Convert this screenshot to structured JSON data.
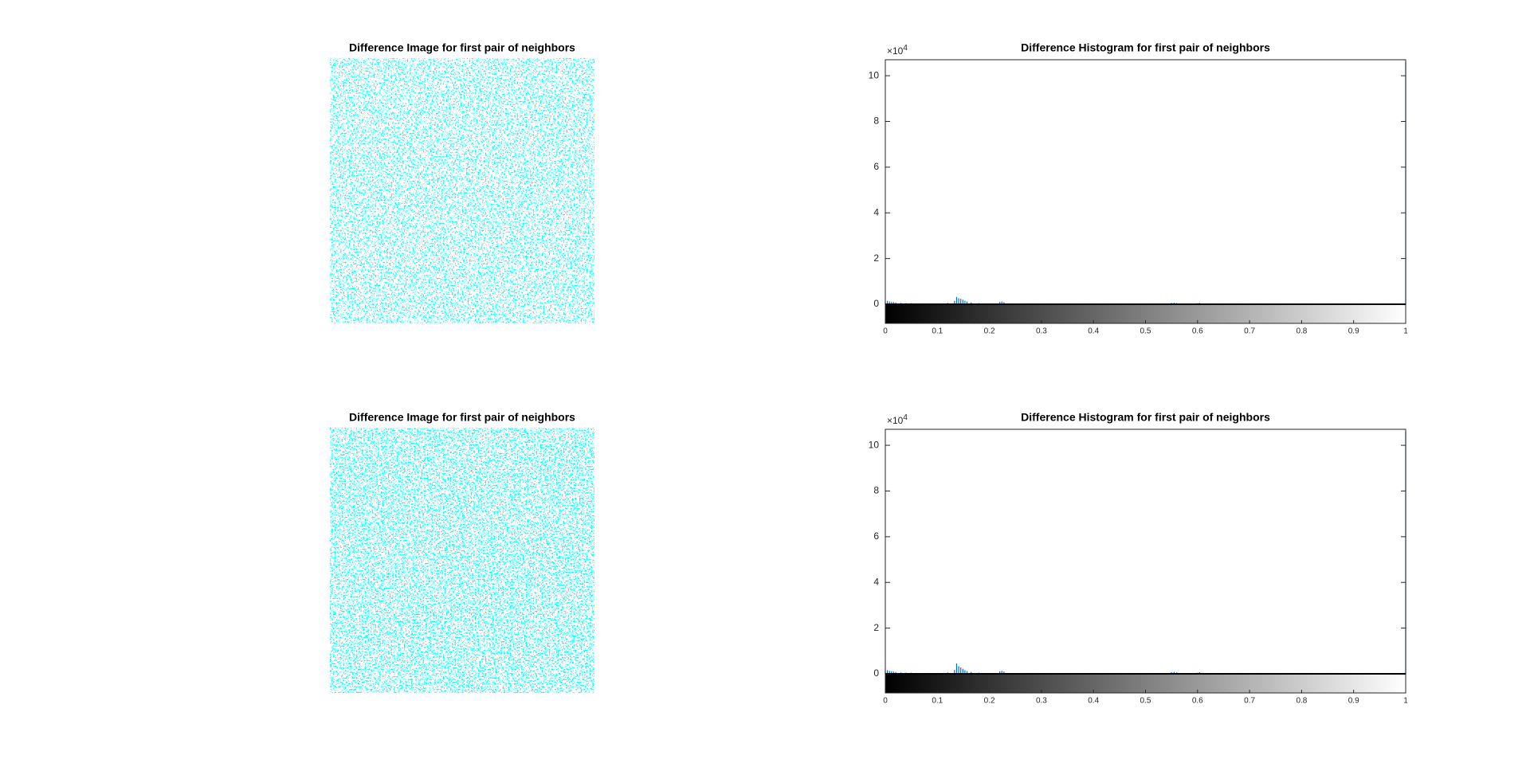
{
  "chart_data": [
    {
      "type": "image",
      "title": "Difference Image for first pair of neighbors"
    },
    {
      "type": "histogram",
      "title": "Difference Histogram for first pair of neighbors",
      "color": "#0072bd",
      "x": [
        0,
        0.004,
        0.008,
        0.012,
        0.016,
        0.02,
        0.03,
        0.04,
        0.05,
        0.06,
        0.08,
        0.1,
        0.12,
        0.133,
        0.137,
        0.141,
        0.145,
        0.149,
        0.153,
        0.157,
        0.165,
        0.18,
        0.22,
        0.224,
        0.228,
        0.3,
        0.4,
        0.5,
        0.55,
        0.555,
        0.56,
        0.6,
        0.604,
        0.7,
        0.8,
        0.9,
        1
      ],
      "values": [
        1200,
        1500,
        1200,
        1000,
        900,
        800,
        600,
        500,
        500,
        400,
        400,
        400,
        600,
        1500,
        3200,
        2600,
        2400,
        2000,
        1500,
        1200,
        800,
        500,
        1000,
        1200,
        900,
        300,
        300,
        300,
        600,
        700,
        500,
        500,
        600,
        300,
        300,
        200,
        106000
      ],
      "xlim": [
        0,
        1
      ],
      "ylim": [
        0,
        107000
      ],
      "xticks": [
        0,
        0.1,
        0.2,
        0.3,
        0.4,
        0.5,
        0.6,
        0.7,
        0.8,
        0.9,
        1
      ],
      "yticks": [
        0,
        {
          "value": 20000,
          "label": "2"
        },
        {
          "value": 40000,
          "label": "4"
        },
        {
          "value": 60000,
          "label": "6"
        },
        {
          "value": 80000,
          "label": "8"
        },
        {
          "value": 100000,
          "label": "10"
        }
      ],
      "y_multiplier": {
        "base": "×10",
        "power": "4"
      }
    },
    {
      "type": "image",
      "title": "Difference Image for first pair of neighbors"
    },
    {
      "type": "histogram",
      "title": "Difference Histogram for first pair of neighbors",
      "color": "#0072bd",
      "x": [
        0,
        0.004,
        0.008,
        0.012,
        0.016,
        0.02,
        0.03,
        0.04,
        0.05,
        0.06,
        0.08,
        0.1,
        0.12,
        0.133,
        0.137,
        0.141,
        0.145,
        0.149,
        0.153,
        0.157,
        0.165,
        0.18,
        0.22,
        0.224,
        0.228,
        0.3,
        0.4,
        0.5,
        0.55,
        0.555,
        0.56,
        0.6,
        0.604,
        0.7,
        0.8,
        0.9,
        1
      ],
      "values": [
        1300,
        1600,
        1300,
        1100,
        900,
        800,
        600,
        500,
        500,
        400,
        400,
        400,
        600,
        1700,
        4500,
        3300,
        2800,
        2200,
        1600,
        1200,
        800,
        500,
        1100,
        1300,
        1000,
        300,
        300,
        300,
        700,
        800,
        600,
        500,
        700,
        300,
        300,
        200,
        106000
      ],
      "xlim": [
        0,
        1
      ],
      "ylim": [
        0,
        107000
      ],
      "xticks": [
        0,
        0.1,
        0.2,
        0.3,
        0.4,
        0.5,
        0.6,
        0.7,
        0.8,
        0.9,
        1
      ],
      "yticks": [
        0,
        {
          "value": 20000,
          "label": "2"
        },
        {
          "value": 40000,
          "label": "4"
        },
        {
          "value": 60000,
          "label": "6"
        },
        {
          "value": 80000,
          "label": "8"
        },
        {
          "value": 100000,
          "label": "10"
        }
      ],
      "y_multiplier": {
        "base": "×10",
        "power": "4"
      }
    }
  ]
}
